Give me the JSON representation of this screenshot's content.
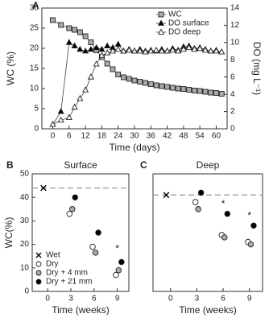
{
  "chart_data": [
    {
      "type": "line",
      "label": "A",
      "xlabel": "Time (days)",
      "ylabel": "WC (%)",
      "y2label": "DO (mg L⁻¹)",
      "x": [
        0,
        3,
        6,
        8,
        10,
        12,
        14,
        16,
        18,
        20,
        22,
        24,
        26,
        28,
        30,
        32,
        34,
        36,
        38,
        40,
        42,
        44,
        46,
        48,
        50,
        52,
        54,
        56,
        58,
        60,
        62
      ],
      "xlim": [
        -4,
        64
      ],
      "xticks": [
        0,
        6,
        12,
        18,
        24,
        30,
        36,
        42,
        48,
        54,
        60
      ],
      "ylim": [
        0,
        30
      ],
      "yticks": [
        0,
        5,
        10,
        15,
        20,
        25,
        30
      ],
      "y2lim": [
        0,
        14
      ],
      "y2ticks": [
        0,
        2,
        4,
        6,
        8,
        10,
        12,
        14
      ],
      "legend": "upper right",
      "series": [
        {
          "name": "WC",
          "color": "#aaaaaa",
          "marker": "square",
          "values": [
            27,
            25.8,
            25,
            24.6,
            24,
            23,
            21.5,
            19.5,
            17.8,
            16.2,
            14.8,
            13.5,
            12.8,
            12.4,
            12,
            11.7,
            11.4,
            11.1,
            10.8,
            10.6,
            10.4,
            10.2,
            10,
            9.9,
            9.7,
            9.5,
            9.4,
            9.2,
            9,
            8.9,
            8.7
          ]
        },
        {
          "name": "DO surface",
          "color": "#000000",
          "marker": "triangle",
          "axis": "y2",
          "values": [
            0.5,
            2,
            10,
            9.6,
            9.2,
            9,
            9.2,
            9.4,
            9.2,
            9.6,
            9.4,
            9.8,
            9,
            9.2,
            9,
            9.2,
            9,
            9.1,
            9,
            9.2,
            9,
            9.3,
            9.1,
            9.5,
            9.6,
            9.3,
            9.4,
            9.2,
            9,
            9.1,
            8.9
          ]
        },
        {
          "name": "DO deep",
          "color": "#ffffff",
          "marker": "triangle",
          "axis": "y2",
          "values": [
            0.5,
            1,
            1.3,
            2.5,
            3.5,
            4.5,
            6,
            7.5,
            8.5,
            8.8,
            9,
            9.2,
            9,
            9.1,
            9,
            9,
            8.9,
            9,
            9.1,
            9,
            9,
            9.1,
            9,
            9.2,
            9.4,
            9.2,
            9.3,
            9.1,
            9,
            9,
            8.9
          ]
        }
      ]
    },
    {
      "type": "scatter",
      "label": "B",
      "title": "Surface",
      "xlabel": "Time (weeks)",
      "ylabel": "WC(%)",
      "x": [
        0,
        3,
        6,
        9
      ],
      "xlim": [
        -2,
        10.5
      ],
      "xticks": [
        0,
        3,
        6,
        9
      ],
      "ylim": [
        0,
        50
      ],
      "yticks": [
        0,
        10,
        20,
        30,
        40,
        50
      ],
      "reference_line": 44,
      "legend": "lower left",
      "series": [
        {
          "name": "Wet",
          "color": "#000000",
          "marker": "x",
          "values": [
            44,
            null,
            null,
            null
          ]
        },
        {
          "name": "Dry",
          "color": "#ffffff",
          "marker": "circle",
          "values": [
            null,
            33,
            19,
            7
          ]
        },
        {
          "name": "Dry + 4 mm",
          "color": "#aaaaaa",
          "marker": "circle",
          "values": [
            null,
            35,
            16.5,
            9
          ]
        },
        {
          "name": "Dry + 21 mm",
          "color": "#000000",
          "marker": "circle",
          "values": [
            null,
            40,
            25,
            12.5
          ]
        }
      ],
      "annotations": [
        {
          "text": "*",
          "x": 9,
          "y": 18
        }
      ]
    },
    {
      "type": "scatter",
      "label": "C",
      "title": "Deep",
      "xlabel": "Time (weeks)",
      "x": [
        0,
        3,
        6,
        9
      ],
      "xlim": [
        -2,
        10.5
      ],
      "xticks": [
        0,
        3,
        6,
        9
      ],
      "ylim": [
        0,
        50
      ],
      "reference_line": 41,
      "series": [
        {
          "color": "#000000",
          "marker": "x",
          "values": [
            41,
            null,
            null,
            null
          ]
        },
        {
          "color": "#ffffff",
          "marker": "circle",
          "values": [
            null,
            38,
            24,
            21
          ]
        },
        {
          "color": "#aaaaaa",
          "marker": "circle",
          "values": [
            null,
            35,
            23,
            20
          ]
        },
        {
          "color": "#000000",
          "marker": "circle",
          "values": [
            null,
            42,
            33,
            28
          ]
        }
      ],
      "annotations": [
        {
          "text": "*",
          "x": 6,
          "y": 37
        },
        {
          "text": "*",
          "x": 9,
          "y": 32
        }
      ]
    }
  ]
}
